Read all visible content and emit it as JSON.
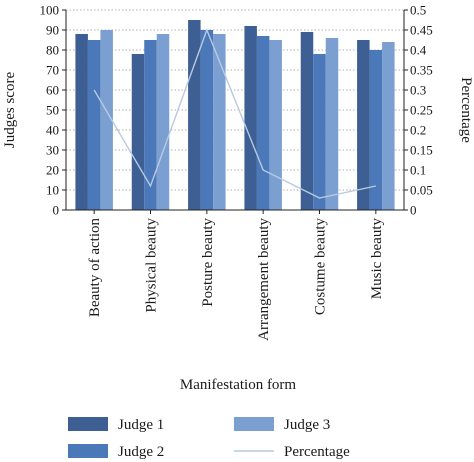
{
  "chart_data": {
    "type": "bar",
    "categories": [
      "Beauty of action",
      "Physical beauty",
      "Posture beauty",
      "Arrangement beauty",
      "Costume beauty",
      "Music beauty"
    ],
    "series": [
      {
        "name": "Judge 1",
        "type": "bar",
        "axis": "left",
        "color": "#3d5f94",
        "values": [
          88,
          78,
          95,
          92,
          89,
          85
        ]
      },
      {
        "name": "Judge 2",
        "type": "bar",
        "axis": "left",
        "color": "#4a78b8",
        "values": [
          85,
          85,
          90,
          87,
          78,
          80
        ]
      },
      {
        "name": "Judge 3",
        "type": "bar",
        "axis": "left",
        "color": "#7b9fd1",
        "values": [
          90,
          88,
          88,
          85,
          86,
          84
        ]
      },
      {
        "name": "Percentage",
        "type": "line",
        "axis": "right",
        "color": "#b8c9e2",
        "values": [
          0.3,
          0.06,
          0.45,
          0.1,
          0.03,
          0.06
        ]
      }
    ],
    "xlabel": "Manifestation form",
    "ylabel": "Judges score",
    "ylabel_right": "Percentage",
    "ylim": [
      0,
      100
    ],
    "ylim_right": [
      0,
      0.5
    ],
    "yticks": [
      0,
      10,
      20,
      30,
      40,
      50,
      60,
      70,
      80,
      90,
      100
    ],
    "yticks_right": [
      "0",
      "0.05",
      "0.1",
      "0.15",
      "0.2",
      "0.25",
      "0.3",
      "0.35",
      "0.4",
      "0.45",
      "0.5"
    ],
    "grid": "horizontal dotted",
    "legend_position": "bottom"
  }
}
